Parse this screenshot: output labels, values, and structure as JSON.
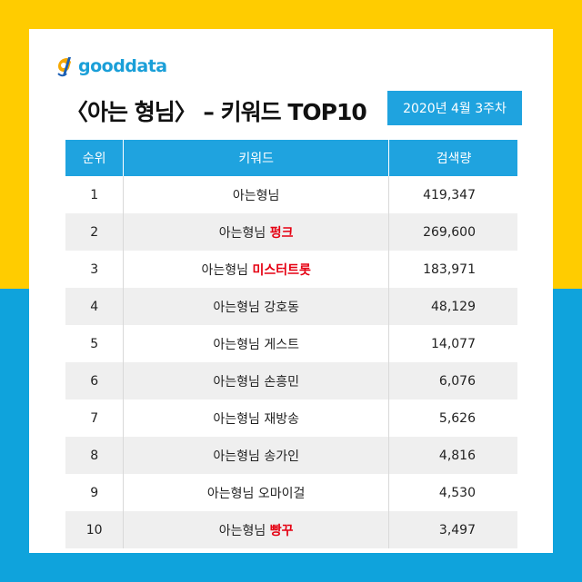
{
  "colors": {
    "top_band": "#ffcc00",
    "bottom_band": "#0fa3dc",
    "accent": "#1fa3df",
    "highlight": "#e50012",
    "alt_row": "#efefef"
  },
  "brand": {
    "icon": "gooddata-logo-icon",
    "name": "gooddata"
  },
  "title": "〈아는 형님〉 – 키워드 TOP10",
  "week": "2020년 4월 3주차",
  "table": {
    "headers": {
      "rank": "순위",
      "keyword": "키워드",
      "volume": "검색량"
    },
    "rows": [
      {
        "rank": "1",
        "keyword_base": "아는형님",
        "keyword_highlight": "",
        "volume": "419,347"
      },
      {
        "rank": "2",
        "keyword_base": "아는형님 ",
        "keyword_highlight": "펑크",
        "volume": "269,600"
      },
      {
        "rank": "3",
        "keyword_base": "아는형님 ",
        "keyword_highlight": "미스터트롯",
        "volume": "183,971"
      },
      {
        "rank": "4",
        "keyword_base": "아는형님 강호동",
        "keyword_highlight": "",
        "volume": "48,129"
      },
      {
        "rank": "5",
        "keyword_base": "아는형님 게스트",
        "keyword_highlight": "",
        "volume": "14,077"
      },
      {
        "rank": "6",
        "keyword_base": "아는형님 손흥민",
        "keyword_highlight": "",
        "volume": "6,076"
      },
      {
        "rank": "7",
        "keyword_base": "아는형님 재방송",
        "keyword_highlight": "",
        "volume": "5,626"
      },
      {
        "rank": "8",
        "keyword_base": "아는형님 송가인",
        "keyword_highlight": "",
        "volume": "4,816"
      },
      {
        "rank": "9",
        "keyword_base": "아는형님 오마이걸",
        "keyword_highlight": "",
        "volume": "4,530"
      },
      {
        "rank": "10",
        "keyword_base": "아는형님 ",
        "keyword_highlight": "빵꾸",
        "volume": "3,497"
      }
    ]
  }
}
